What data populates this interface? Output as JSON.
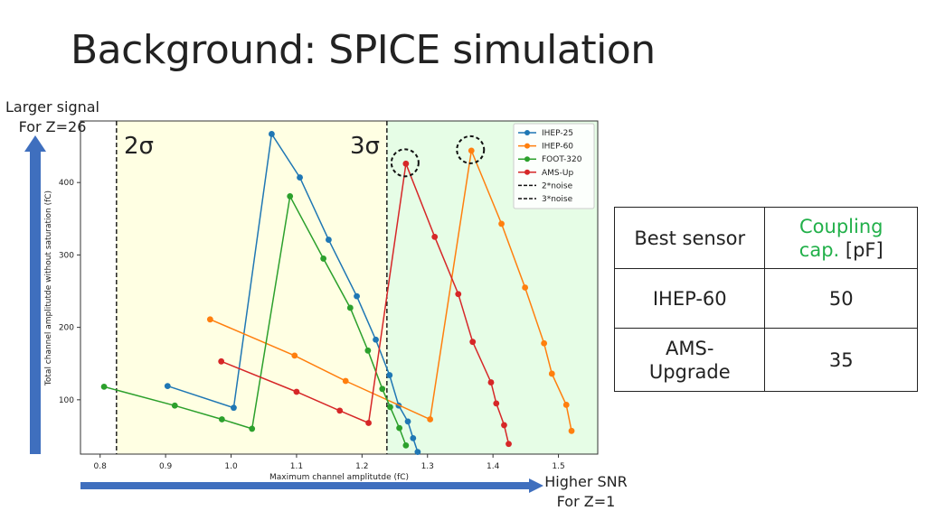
{
  "title": "Background: SPICE simulation",
  "annotations": {
    "y_note": [
      "Larger signal",
      "For Z=26"
    ],
    "x_note": [
      "Higher SNR",
      "For Z=1"
    ],
    "sigma2": "2σ",
    "sigma3": "3σ"
  },
  "table": {
    "header": {
      "col1": "Best sensor",
      "col2_highlight": "Coupling cap.",
      "col2_unit": "[pF]"
    },
    "rows": [
      {
        "sensor": "IHEP-60",
        "value": "50"
      },
      {
        "sensor": "AMS-\nUpgrade",
        "value": "35"
      }
    ]
  },
  "colors": {
    "region_2sigma": "#ffffe3",
    "region_3sigma": "#e6fde6",
    "arrow": "#3f6fbe",
    "highlight": "#22b04a"
  },
  "chart_data": {
    "type": "line",
    "xlabel": "Maximum channel amplitutde (fC)",
    "ylabel": "Total channel amplitutde without saturation (fC)",
    "xlim": [
      0.77,
      1.56
    ],
    "ylim": [
      25,
      485
    ],
    "xticks": [
      "0.8",
      "0.9",
      "1.0",
      "1.1",
      "1.2",
      "1.3",
      "1.4",
      "1.5"
    ],
    "yticks": [
      "100",
      "200",
      "300",
      "400"
    ],
    "legend_position": "top-right",
    "series": [
      {
        "name": "IHEP-25",
        "color": "#1f77b4",
        "points": [
          [
            0.903,
            119
          ],
          [
            1.004,
            89
          ],
          [
            1.062,
            467
          ],
          [
            1.105,
            407
          ],
          [
            1.149,
            321
          ],
          [
            1.192,
            243
          ],
          [
            1.221,
            183
          ],
          [
            1.242,
            134
          ],
          [
            1.256,
            92
          ],
          [
            1.27,
            70
          ],
          [
            1.278,
            47
          ],
          [
            1.285,
            28
          ]
        ]
      },
      {
        "name": "IHEP-60",
        "color": "#ff7f0e",
        "points": [
          [
            0.968,
            211
          ],
          [
            1.097,
            161
          ],
          [
            1.175,
            126
          ],
          [
            1.304,
            73
          ],
          [
            1.367,
            444
          ],
          [
            1.413,
            343
          ],
          [
            1.449,
            255
          ],
          [
            1.478,
            178
          ],
          [
            1.49,
            136
          ],
          [
            1.512,
            93
          ],
          [
            1.52,
            57
          ]
        ]
      },
      {
        "name": "FOOT-320",
        "color": "#2ca02c",
        "points": [
          [
            0.806,
            118
          ],
          [
            0.914,
            92
          ],
          [
            0.986,
            73
          ],
          [
            1.032,
            60
          ],
          [
            1.09,
            381
          ],
          [
            1.141,
            295
          ],
          [
            1.182,
            227
          ],
          [
            1.209,
            168
          ],
          [
            1.231,
            115
          ],
          [
            1.243,
            90
          ],
          [
            1.257,
            61
          ],
          [
            1.267,
            37
          ]
        ]
      },
      {
        "name": "AMS-Up",
        "color": "#d62728",
        "points": [
          [
            0.985,
            153
          ],
          [
            1.1,
            111
          ],
          [
            1.166,
            85
          ],
          [
            1.21,
            68
          ],
          [
            1.267,
            426
          ],
          [
            1.311,
            325
          ],
          [
            1.347,
            246
          ],
          [
            1.369,
            180
          ],
          [
            1.397,
            124
          ],
          [
            1.405,
            95
          ],
          [
            1.417,
            65
          ],
          [
            1.424,
            39
          ]
        ]
      }
    ],
    "thresholds": [
      {
        "name": "2*noise",
        "x": 0.825
      },
      {
        "name": "3*noise",
        "x": 1.238
      }
    ],
    "circled_points": [
      [
        1.267,
        426
      ],
      [
        1.367,
        444
      ]
    ]
  }
}
